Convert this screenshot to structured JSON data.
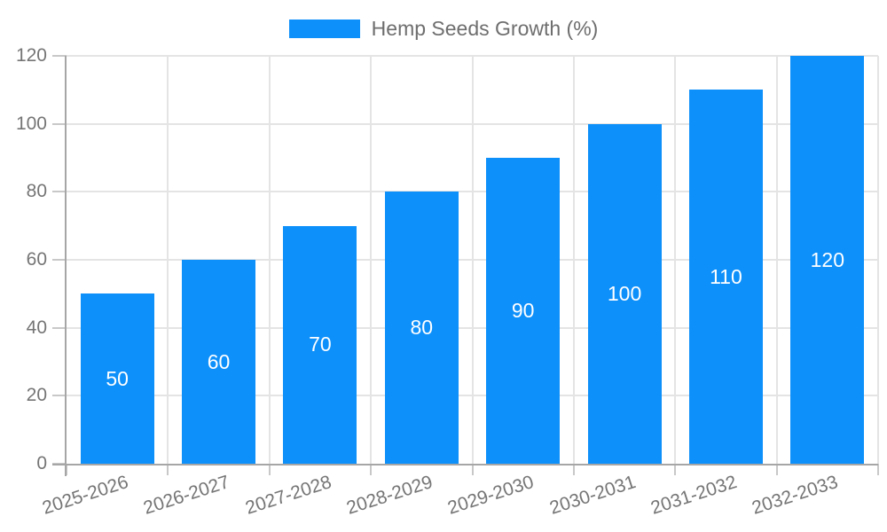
{
  "chart_data": {
    "type": "bar",
    "title": "Hemp Seeds Growth (%)",
    "categories": [
      "2025-2026",
      "2026-2027",
      "2027-2028",
      "2028-2029",
      "2029-2030",
      "2030-2031",
      "2031-2032",
      "2032-2033"
    ],
    "values": [
      50,
      60,
      70,
      80,
      90,
      100,
      110,
      120
    ],
    "yticks": [
      0,
      20,
      40,
      60,
      80,
      100,
      120
    ],
    "ylim": [
      0,
      120
    ],
    "xlabel": "",
    "ylabel": "",
    "grid": true,
    "legend_position": "top-center",
    "x_label_rotation_deg": -18,
    "colors": {
      "bar": "#0E90FA",
      "bar_label": "#FFFFFF",
      "axis_text": "#757575",
      "legend_text": "#6E6E6E",
      "gridline": "#E4E4E4",
      "axis_line": "#A6A6A6",
      "tick": "#C8C8C8",
      "background": "#FFFFFF"
    }
  }
}
